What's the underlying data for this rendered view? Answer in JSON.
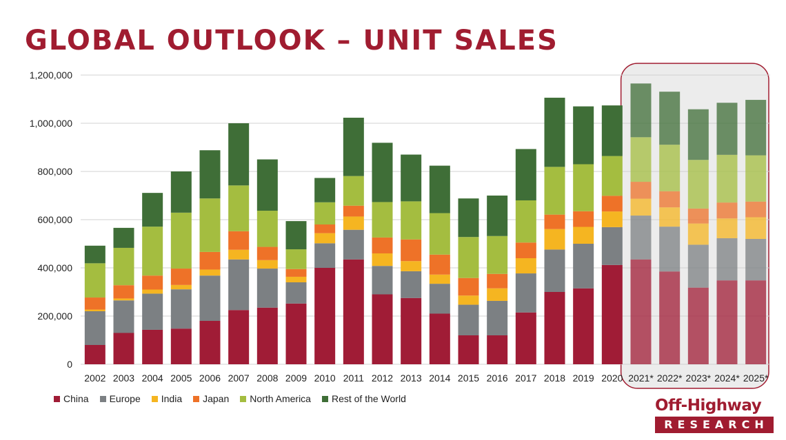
{
  "title": "GLOBAL OUTLOOK – UNIT SALES",
  "logo": {
    "line1": "Off-Highway",
    "line2": "RESEARCH"
  },
  "chart_data": {
    "type": "bar",
    "stacked": true,
    "categories": [
      "2002",
      "2003",
      "2004",
      "2005",
      "2006",
      "2007",
      "2008",
      "2009",
      "2010",
      "2011",
      "2012",
      "2013",
      "2014",
      "2015",
      "2016",
      "2017",
      "2018",
      "2019",
      "2020",
      "2021*",
      "2022*",
      "2023*",
      "2024*",
      "2025*"
    ],
    "forecast_categories": [
      "2021*",
      "2022*",
      "2023*",
      "2024*",
      "2025*"
    ],
    "yticks": [
      "0",
      "200,000",
      "400,000",
      "600,000",
      "800,000",
      "1,000,000",
      "1,200,000"
    ],
    "ylim": [
      0,
      1200000
    ],
    "grid": true,
    "legend_position": "bottom",
    "series": [
      {
        "name": "China",
        "color": "#a01c36",
        "values": [
          80000,
          130000,
          143000,
          148000,
          180000,
          225000,
          235000,
          252000,
          400000,
          435000,
          290000,
          275000,
          210000,
          120000,
          120000,
          215000,
          300000,
          315000,
          412000,
          435000,
          385000,
          318000,
          348000,
          348000
        ]
      },
      {
        "name": "Europe",
        "color": "#7c8083",
        "values": [
          140000,
          135000,
          150000,
          163000,
          188000,
          210000,
          162000,
          88000,
          102000,
          123000,
          118000,
          111000,
          124000,
          127000,
          143000,
          162000,
          176000,
          185000,
          157000,
          182000,
          186000,
          178000,
          175000,
          172000
        ]
      },
      {
        "name": "India",
        "color": "#f5b521",
        "values": [
          7000,
          8000,
          17000,
          18000,
          25000,
          40000,
          35000,
          23000,
          42000,
          55000,
          52000,
          42000,
          38000,
          38000,
          52000,
          63000,
          85000,
          70000,
          65000,
          70000,
          80000,
          88000,
          82000,
          90000
        ]
      },
      {
        "name": "Japan",
        "color": "#ee7228",
        "values": [
          50000,
          55000,
          58000,
          68000,
          73000,
          77000,
          55000,
          32000,
          36000,
          45000,
          66000,
          90000,
          83000,
          73000,
          60000,
          65000,
          60000,
          65000,
          65000,
          70000,
          67000,
          62000,
          66000,
          65000
        ]
      },
      {
        "name": "North America",
        "color": "#a4bd40",
        "values": [
          142000,
          155000,
          203000,
          232000,
          222000,
          190000,
          150000,
          82000,
          92000,
          123000,
          147000,
          158000,
          172000,
          170000,
          157000,
          175000,
          198000,
          195000,
          165000,
          185000,
          193000,
          202000,
          198000,
          192000
        ]
      },
      {
        "name": "Rest of the World",
        "color": "#3f6e37",
        "values": [
          73000,
          83000,
          140000,
          171000,
          200000,
          258000,
          213000,
          117000,
          101000,
          242000,
          246000,
          194000,
          197000,
          160000,
          168000,
          213000,
          287000,
          240000,
          210000,
          223000,
          220000,
          210000,
          216000,
          230000
        ]
      }
    ]
  }
}
